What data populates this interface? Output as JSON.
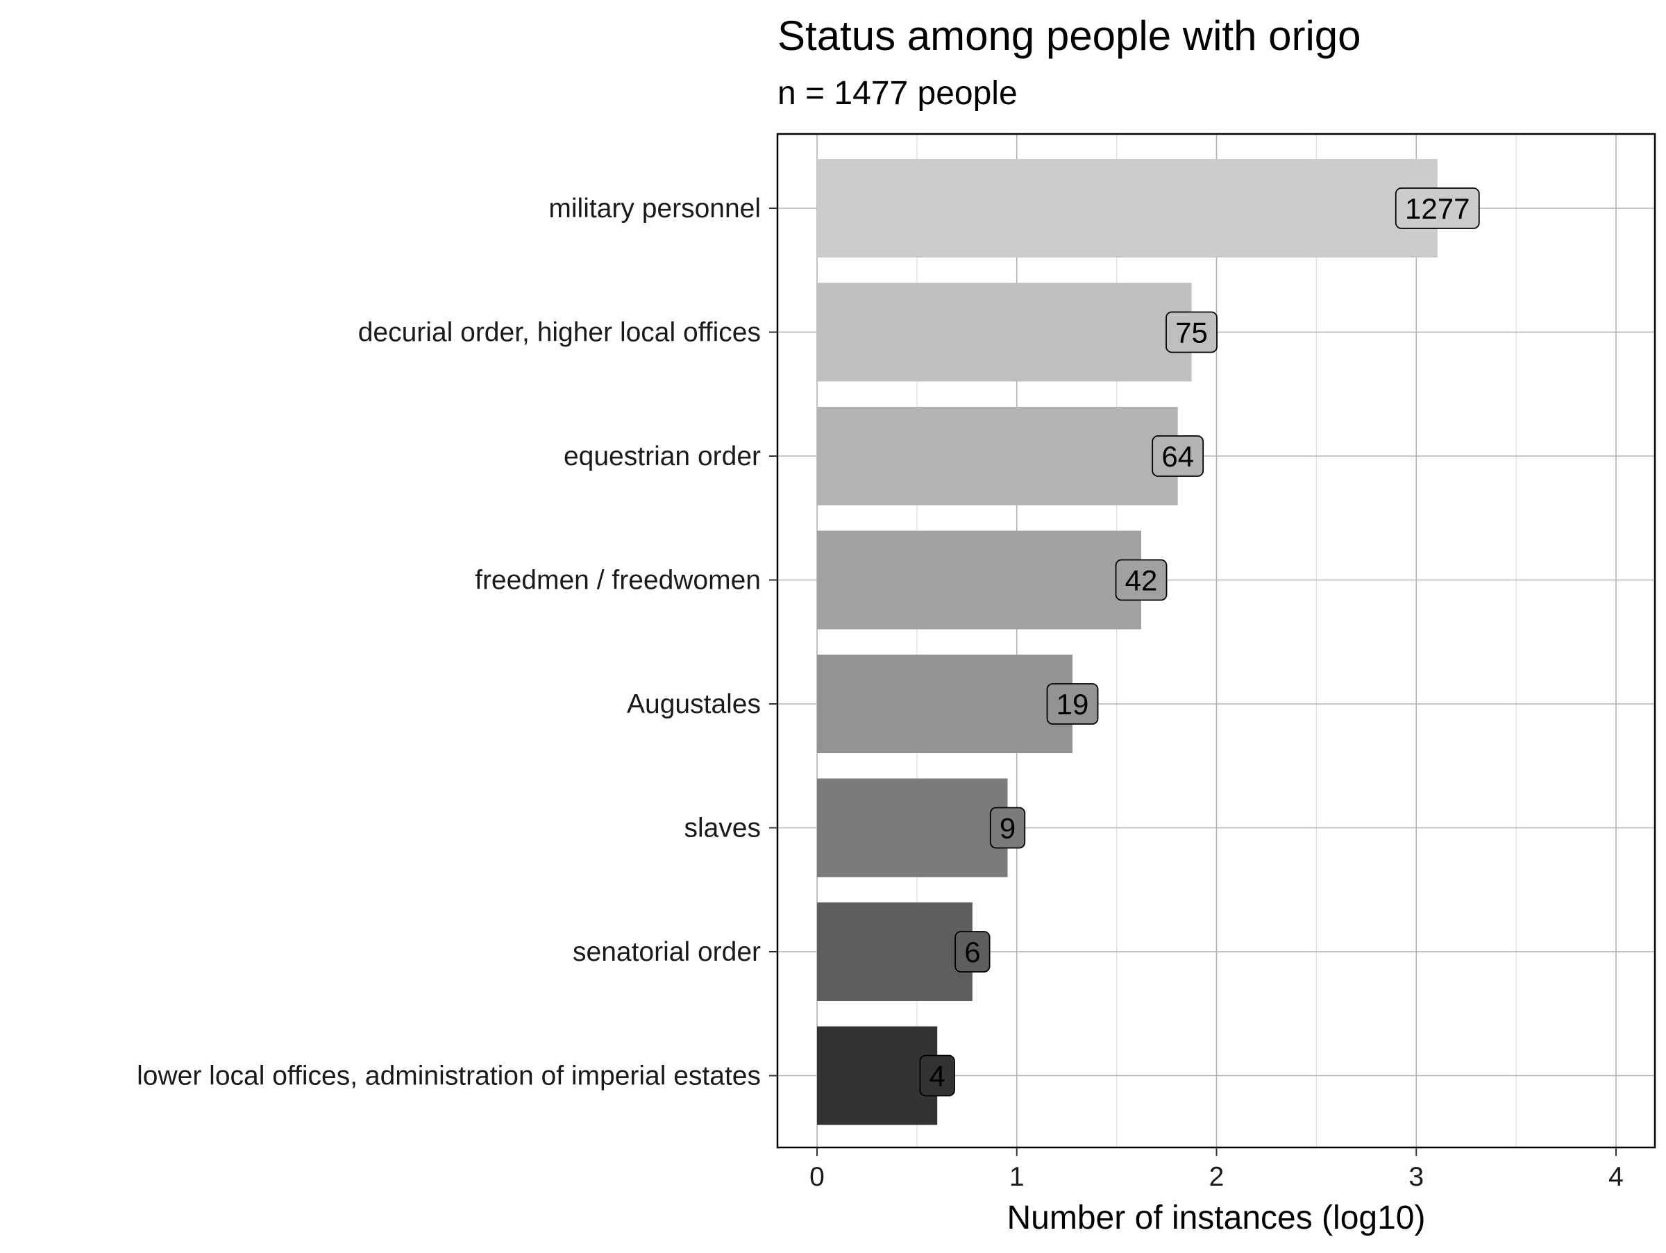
{
  "chart_data": {
    "type": "bar",
    "orientation": "horizontal",
    "title": "Status among people with origo",
    "subtitle": "n = 1477 people",
    "xlabel": "Number of instances (log10)",
    "ylabel": "",
    "xlim": [
      0,
      4
    ],
    "x_ticks": [
      "0",
      "1",
      "2",
      "3",
      "4"
    ],
    "grid": true,
    "categories": [
      "military personnel",
      "decurial order, higher local offices",
      "equestrian order",
      "freedmen / freedwomen",
      "Augustales",
      "slaves",
      "senatorial order",
      "lower local offices, administration of imperial estates"
    ],
    "values": [
      3.106,
      1.875,
      1.806,
      1.623,
      1.279,
      0.954,
      0.778,
      0.602
    ],
    "data_labels": [
      "1277",
      "75",
      "64",
      "42",
      "19",
      "9",
      "6",
      "4"
    ],
    "bar_colors": [
      "#cccccc",
      "#bfbfbf",
      "#b3b3b3",
      "#a1a1a1",
      "#939393",
      "#7b7b7b",
      "#5e5e5e",
      "#333333"
    ]
  }
}
